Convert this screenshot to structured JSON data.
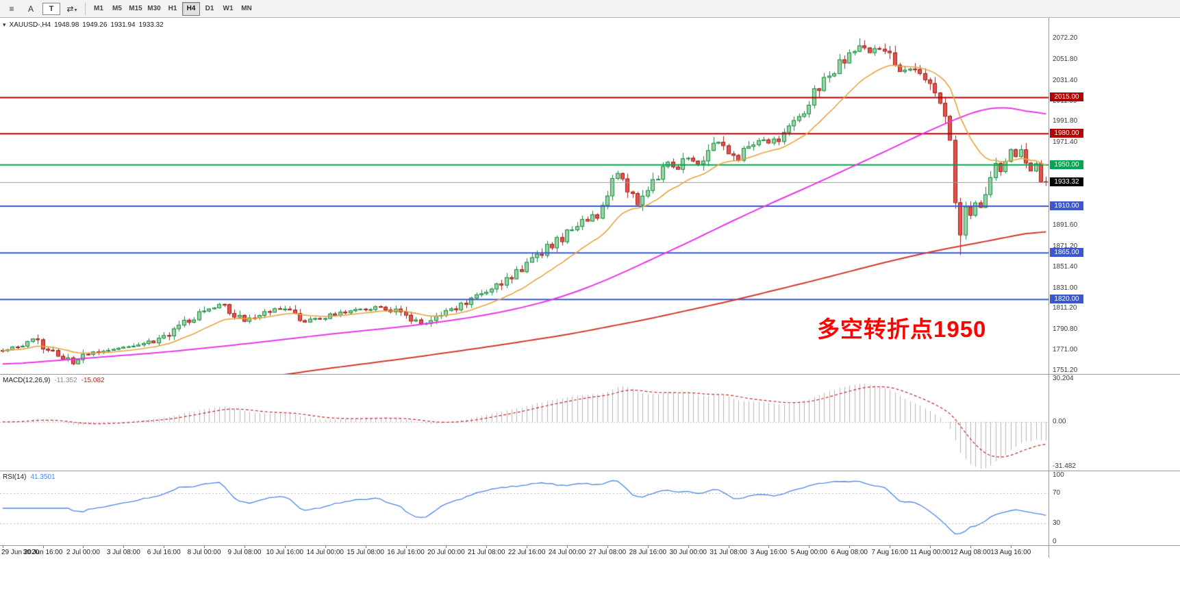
{
  "toolbar": {
    "tools": [
      {
        "id": "chart-window-icon",
        "glyph": "≡"
      },
      {
        "id": "annotate-a-tool",
        "glyph": "A"
      },
      {
        "id": "text-tool",
        "glyph": "T",
        "boxed": true
      },
      {
        "id": "cycle-symbols-tool",
        "glyph": "⇄",
        "caret": true
      }
    ],
    "timeframes": [
      {
        "label": "M1"
      },
      {
        "label": "M5"
      },
      {
        "label": "M15"
      },
      {
        "label": "M30"
      },
      {
        "label": "H1"
      },
      {
        "label": "H4",
        "active": true
      },
      {
        "label": "D1"
      },
      {
        "label": "W1"
      },
      {
        "label": "MN"
      }
    ]
  },
  "main_chart": {
    "quote": {
      "symbol_tf": "XAUUSD-,H4",
      "open": "1948.98",
      "high": "1949.26",
      "low": "1931.94",
      "close": "1933.32"
    },
    "annotation": {
      "text": "多空转折点1950",
      "color": "#ff0000"
    },
    "price_tag": {
      "label": "1933.32",
      "color": "#000000"
    }
  },
  "macd": {
    "label": "MACD(12,26,9)",
    "value_main": "-11.352",
    "value_signal": "-15.082",
    "y_ticks": [
      "30.204",
      "0.00",
      "-31.482"
    ]
  },
  "rsi": {
    "label": "RSI(14)",
    "value": "41.3501",
    "y_ticks": [
      "100",
      "70",
      "30",
      "0"
    ]
  },
  "chart_data": {
    "type": "candlestick",
    "symbol": "XAUUSD-",
    "timeframe": "H4",
    "candle_count": 208,
    "visible_range": {
      "min": 1748,
      "max": 2092
    },
    "y_axis_labels": [
      "2072.20",
      "2051.80",
      "2031.40",
      "2011.00",
      "1991.80",
      "1971.40",
      "1951.00",
      "1930.60",
      "1910.20",
      "1891.60",
      "1871.20",
      "1851.40",
      "1831.00",
      "1811.20",
      "1790.80",
      "1771.00",
      "1751.20"
    ],
    "x_labels": [
      "29 Jun 2020",
      "30 Jun 16:00",
      "2 Jul 00:00",
      "3 Jul 08:00",
      "6 Jul 16:00",
      "8 Jul 00:00",
      "9 Jul 08:00",
      "10 Jul 16:00",
      "14 Jul 00:00",
      "15 Jul 08:00",
      "16 Jul 16:00",
      "20 Jul 00:00",
      "21 Jul 08:00",
      "22 Jul 16:00",
      "24 Jul 00:00",
      "27 Jul 08:00",
      "28 Jul 16:00",
      "30 Jul 00:00",
      "31 Jul 08:00",
      "3 Aug 16:00",
      "5 Aug 00:00",
      "6 Aug 08:00",
      "7 Aug 16:00",
      "11 Aug 00:00",
      "12 Aug 08:00",
      "13 Aug 16:00"
    ],
    "label_step": 8,
    "close_anchors": [
      [
        0,
        1770
      ],
      [
        3,
        1775
      ],
      [
        6,
        1781
      ],
      [
        8,
        1774
      ],
      [
        11,
        1766
      ],
      [
        14,
        1759
      ],
      [
        16,
        1765
      ],
      [
        19,
        1771
      ],
      [
        22,
        1773
      ],
      [
        26,
        1774
      ],
      [
        29,
        1778
      ],
      [
        32,
        1785
      ],
      [
        35,
        1794
      ],
      [
        38,
        1803
      ],
      [
        41,
        1811
      ],
      [
        43,
        1816
      ],
      [
        45,
        1809
      ],
      [
        48,
        1800
      ],
      [
        51,
        1806
      ],
      [
        54,
        1812
      ],
      [
        57,
        1808
      ],
      [
        60,
        1799
      ],
      [
        63,
        1802
      ],
      [
        66,
        1806
      ],
      [
        69,
        1809
      ],
      [
        72,
        1811
      ],
      [
        75,
        1813
      ],
      [
        78,
        1809
      ],
      [
        81,
        1800
      ],
      [
        84,
        1797
      ],
      [
        86,
        1802
      ],
      [
        88,
        1808
      ],
      [
        90,
        1812
      ],
      [
        92,
        1817
      ],
      [
        94,
        1822
      ],
      [
        96,
        1828
      ],
      [
        98,
        1833
      ],
      [
        100,
        1840
      ],
      [
        102,
        1847
      ],
      [
        104,
        1855
      ],
      [
        106,
        1862
      ],
      [
        108,
        1870
      ],
      [
        110,
        1876
      ],
      [
        112,
        1885
      ],
      [
        114,
        1892
      ],
      [
        116,
        1898
      ],
      [
        118,
        1903
      ],
      [
        120,
        1924
      ],
      [
        122,
        1941
      ],
      [
        124,
        1929
      ],
      [
        126,
        1911
      ],
      [
        128,
        1921
      ],
      [
        130,
        1940
      ],
      [
        132,
        1952
      ],
      [
        134,
        1947
      ],
      [
        136,
        1956
      ],
      [
        138,
        1950
      ],
      [
        140,
        1961
      ],
      [
        142,
        1971
      ],
      [
        144,
        1963
      ],
      [
        146,
        1956
      ],
      [
        148,
        1967
      ],
      [
        150,
        1974
      ],
      [
        152,
        1971
      ],
      [
        154,
        1976
      ],
      [
        156,
        1983
      ],
      [
        158,
        1995
      ],
      [
        160,
        2010
      ],
      [
        162,
        2026
      ],
      [
        164,
        2037
      ],
      [
        166,
        2048
      ],
      [
        168,
        2057
      ],
      [
        170,
        2065
      ],
      [
        172,
        2058
      ],
      [
        174,
        2063
      ],
      [
        176,
        2053
      ],
      [
        178,
        2038
      ],
      [
        180,
        2044
      ],
      [
        182,
        2036
      ],
      [
        184,
        2030
      ],
      [
        185,
        2022
      ],
      [
        186,
        2012
      ],
      [
        187,
        1998
      ],
      [
        188,
        1977
      ],
      [
        189,
        1919
      ],
      [
        190,
        1884
      ],
      [
        191,
        1907
      ],
      [
        192,
        1897
      ],
      [
        193,
        1917
      ],
      [
        194,
        1907
      ],
      [
        195,
        1927
      ],
      [
        196,
        1939
      ],
      [
        197,
        1951
      ],
      [
        198,
        1947
      ],
      [
        199,
        1957
      ],
      [
        200,
        1965
      ],
      [
        201,
        1957
      ],
      [
        202,
        1963
      ],
      [
        203,
        1951
      ],
      [
        204,
        1943
      ],
      [
        205,
        1949
      ],
      [
        206,
        1939
      ],
      [
        207,
        1933.32
      ]
    ],
    "key_points": {
      "peak": {
        "index": 170,
        "price": 2072.2
      },
      "trough": {
        "index": 190,
        "price": 1863.0
      },
      "last_close": 1933.32
    },
    "ma_fast": {
      "type": "ema",
      "period": 16
    },
    "ma_mid": {
      "anchors": [
        [
          0,
          1757
        ],
        [
          16,
          1763
        ],
        [
          32,
          1769
        ],
        [
          48,
          1777
        ],
        [
          64,
          1786
        ],
        [
          80,
          1794
        ],
        [
          88,
          1799
        ],
        [
          96,
          1805
        ],
        [
          104,
          1813
        ],
        [
          112,
          1824
        ],
        [
          120,
          1839
        ],
        [
          128,
          1857
        ],
        [
          136,
          1875
        ],
        [
          144,
          1894
        ],
        [
          152,
          1912
        ],
        [
          160,
          1929
        ],
        [
          168,
          1947
        ],
        [
          176,
          1965
        ],
        [
          182,
          1979
        ],
        [
          188,
          1992
        ],
        [
          192,
          2000
        ],
        [
          196,
          2006
        ],
        [
          200,
          2006
        ],
        [
          204,
          2001
        ],
        [
          207,
          1996
        ]
      ]
    },
    "ma_slow": {
      "anchors": [
        [
          0,
          1712
        ],
        [
          16,
          1721
        ],
        [
          32,
          1731
        ],
        [
          48,
          1742
        ],
        [
          64,
          1753
        ],
        [
          80,
          1763
        ],
        [
          96,
          1774
        ],
        [
          112,
          1786
        ],
        [
          128,
          1801
        ],
        [
          144,
          1818
        ],
        [
          160,
          1837
        ],
        [
          176,
          1857
        ],
        [
          186,
          1868
        ],
        [
          194,
          1875
        ],
        [
          200,
          1881
        ],
        [
          207,
          1887
        ]
      ]
    },
    "hlines": [
      {
        "price": 2015.0,
        "label": "2015.00",
        "color": "#b00000"
      },
      {
        "price": 1980.0,
        "label": "1980.00",
        "color": "#b00000"
      },
      {
        "price": 1950.0,
        "label": "1950.00",
        "color": "#00a651"
      },
      {
        "price": 1910.0,
        "label": "1910.00",
        "color": "#3a57d0"
      },
      {
        "price": 1865.0,
        "label": "1865.00",
        "color": "#3a57d0"
      },
      {
        "price": 1820.0,
        "label": "1820.00",
        "color": "#3a57d0"
      }
    ],
    "macd": {
      "fast": 12,
      "slow": 26,
      "signal": 9,
      "range": [
        -34,
        33
      ]
    },
    "rsi": {
      "period": 14,
      "levels": [
        70,
        30
      ]
    },
    "colors": {
      "up_fill": "#9bd3a4",
      "up_stroke": "#128a3c",
      "down_fill": "#e2534e",
      "down_stroke": "#9e1b15",
      "ma_fast": "#e8a33d",
      "ma_mid": "#e935e9",
      "ma_slow": "#d2372b",
      "macd_hist": "#b4b4b4",
      "macd_signal": "#cc2222",
      "rsi_line": "#4a86e8",
      "price_line": "#9a9a9a"
    }
  }
}
